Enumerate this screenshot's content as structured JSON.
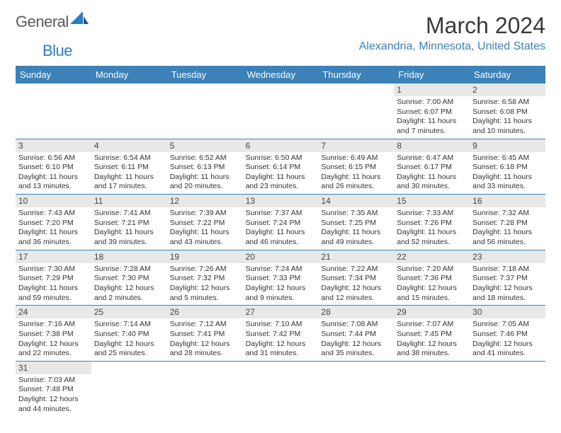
{
  "logo": {
    "text1": "General",
    "text2": "Blue"
  },
  "title": "March 2024",
  "location": "Alexandria, Minnesota, United States",
  "calendar": {
    "header_bg": "#3c81b8",
    "header_fg": "#ffffff",
    "daynum_bg": "#e8e8e8",
    "border_color": "#3c81b8",
    "weekdays": [
      "Sunday",
      "Monday",
      "Tuesday",
      "Wednesday",
      "Thursday",
      "Friday",
      "Saturday"
    ],
    "weeks": [
      [
        null,
        null,
        null,
        null,
        null,
        {
          "n": "1",
          "sr": "7:00 AM",
          "ss": "6:07 PM",
          "dl": "11 hours and 7 minutes."
        },
        {
          "n": "2",
          "sr": "6:58 AM",
          "ss": "6:08 PM",
          "dl": "11 hours and 10 minutes."
        }
      ],
      [
        {
          "n": "3",
          "sr": "6:56 AM",
          "ss": "6:10 PM",
          "dl": "11 hours and 13 minutes."
        },
        {
          "n": "4",
          "sr": "6:54 AM",
          "ss": "6:11 PM",
          "dl": "11 hours and 17 minutes."
        },
        {
          "n": "5",
          "sr": "6:52 AM",
          "ss": "6:13 PM",
          "dl": "11 hours and 20 minutes."
        },
        {
          "n": "6",
          "sr": "6:50 AM",
          "ss": "6:14 PM",
          "dl": "11 hours and 23 minutes."
        },
        {
          "n": "7",
          "sr": "6:49 AM",
          "ss": "6:15 PM",
          "dl": "11 hours and 26 minutes."
        },
        {
          "n": "8",
          "sr": "6:47 AM",
          "ss": "6:17 PM",
          "dl": "11 hours and 30 minutes."
        },
        {
          "n": "9",
          "sr": "6:45 AM",
          "ss": "6:18 PM",
          "dl": "11 hours and 33 minutes."
        }
      ],
      [
        {
          "n": "10",
          "sr": "7:43 AM",
          "ss": "7:20 PM",
          "dl": "11 hours and 36 minutes."
        },
        {
          "n": "11",
          "sr": "7:41 AM",
          "ss": "7:21 PM",
          "dl": "11 hours and 39 minutes."
        },
        {
          "n": "12",
          "sr": "7:39 AM",
          "ss": "7:22 PM",
          "dl": "11 hours and 43 minutes."
        },
        {
          "n": "13",
          "sr": "7:37 AM",
          "ss": "7:24 PM",
          "dl": "11 hours and 46 minutes."
        },
        {
          "n": "14",
          "sr": "7:35 AM",
          "ss": "7:25 PM",
          "dl": "11 hours and 49 minutes."
        },
        {
          "n": "15",
          "sr": "7:33 AM",
          "ss": "7:26 PM",
          "dl": "11 hours and 52 minutes."
        },
        {
          "n": "16",
          "sr": "7:32 AM",
          "ss": "7:28 PM",
          "dl": "11 hours and 56 minutes."
        }
      ],
      [
        {
          "n": "17",
          "sr": "7:30 AM",
          "ss": "7:29 PM",
          "dl": "11 hours and 59 minutes."
        },
        {
          "n": "18",
          "sr": "7:28 AM",
          "ss": "7:30 PM",
          "dl": "12 hours and 2 minutes."
        },
        {
          "n": "19",
          "sr": "7:26 AM",
          "ss": "7:32 PM",
          "dl": "12 hours and 5 minutes."
        },
        {
          "n": "20",
          "sr": "7:24 AM",
          "ss": "7:33 PM",
          "dl": "12 hours and 9 minutes."
        },
        {
          "n": "21",
          "sr": "7:22 AM",
          "ss": "7:34 PM",
          "dl": "12 hours and 12 minutes."
        },
        {
          "n": "22",
          "sr": "7:20 AM",
          "ss": "7:36 PM",
          "dl": "12 hours and 15 minutes."
        },
        {
          "n": "23",
          "sr": "7:18 AM",
          "ss": "7:37 PM",
          "dl": "12 hours and 18 minutes."
        }
      ],
      [
        {
          "n": "24",
          "sr": "7:16 AM",
          "ss": "7:38 PM",
          "dl": "12 hours and 22 minutes."
        },
        {
          "n": "25",
          "sr": "7:14 AM",
          "ss": "7:40 PM",
          "dl": "12 hours and 25 minutes."
        },
        {
          "n": "26",
          "sr": "7:12 AM",
          "ss": "7:41 PM",
          "dl": "12 hours and 28 minutes."
        },
        {
          "n": "27",
          "sr": "7:10 AM",
          "ss": "7:42 PM",
          "dl": "12 hours and 31 minutes."
        },
        {
          "n": "28",
          "sr": "7:08 AM",
          "ss": "7:44 PM",
          "dl": "12 hours and 35 minutes."
        },
        {
          "n": "29",
          "sr": "7:07 AM",
          "ss": "7:45 PM",
          "dl": "12 hours and 38 minutes."
        },
        {
          "n": "30",
          "sr": "7:05 AM",
          "ss": "7:46 PM",
          "dl": "12 hours and 41 minutes."
        }
      ],
      [
        {
          "n": "31",
          "sr": "7:03 AM",
          "ss": "7:48 PM",
          "dl": "12 hours and 44 minutes."
        },
        null,
        null,
        null,
        null,
        null,
        null
      ]
    ]
  },
  "labels": {
    "sunrise": "Sunrise:",
    "sunset": "Sunset:",
    "daylight": "Daylight:"
  }
}
